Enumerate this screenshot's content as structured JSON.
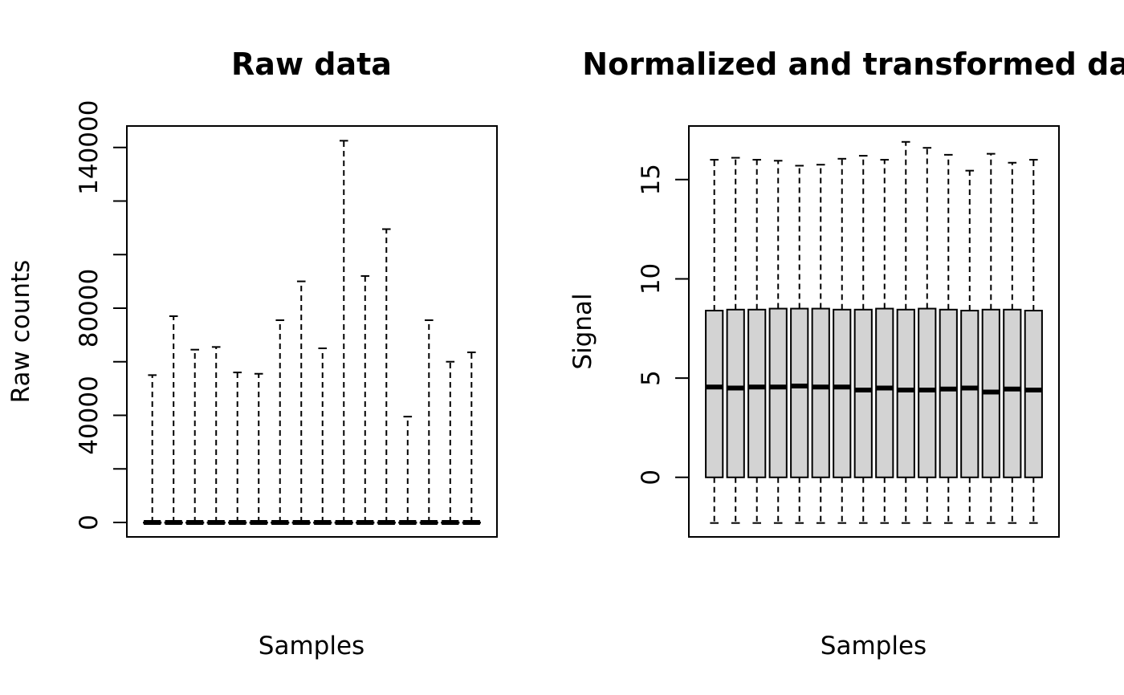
{
  "chart_data": [
    {
      "type": "boxplot",
      "title": "Raw data",
      "xlabel": "Samples",
      "ylabel": "Raw counts",
      "ylim": [
        -5400,
        148000
      ],
      "yticks": [
        0,
        20000,
        40000,
        60000,
        80000,
        100000,
        120000,
        140000
      ],
      "ytick_labels": [
        "0",
        "",
        "40000",
        "",
        "80000",
        "",
        "",
        "140000"
      ],
      "series": [
        {
          "min": 0,
          "q1": 0,
          "median": 0,
          "q3": 0,
          "max": 55000
        },
        {
          "min": 0,
          "q1": 0,
          "median": 0,
          "q3": 0,
          "max": 77000
        },
        {
          "min": 0,
          "q1": 0,
          "median": 0,
          "q3": 0,
          "max": 64500
        },
        {
          "min": 0,
          "q1": 0,
          "median": 0,
          "q3": 0,
          "max": 65500
        },
        {
          "min": 0,
          "q1": 0,
          "median": 0,
          "q3": 0,
          "max": 56000
        },
        {
          "min": 0,
          "q1": 0,
          "median": 0,
          "q3": 0,
          "max": 55500
        },
        {
          "min": 0,
          "q1": 0,
          "median": 0,
          "q3": 0,
          "max": 75500
        },
        {
          "min": 0,
          "q1": 0,
          "median": 0,
          "q3": 0,
          "max": 90000
        },
        {
          "min": 0,
          "q1": 0,
          "median": 0,
          "q3": 0,
          "max": 65000
        },
        {
          "min": 0,
          "q1": 0,
          "median": 0,
          "q3": 0,
          "max": 142500
        },
        {
          "min": 0,
          "q1": 0,
          "median": 0,
          "q3": 0,
          "max": 92000
        },
        {
          "min": 0,
          "q1": 0,
          "median": 0,
          "q3": 0,
          "max": 109500
        },
        {
          "min": 0,
          "q1": 0,
          "median": 0,
          "q3": 0,
          "max": 39500
        },
        {
          "min": 0,
          "q1": 0,
          "median": 0,
          "q3": 0,
          "max": 75500
        },
        {
          "min": 0,
          "q1": 0,
          "median": 0,
          "q3": 0,
          "max": 60000
        },
        {
          "min": 0,
          "q1": 0,
          "median": 0,
          "q3": 0,
          "max": 63500
        }
      ],
      "box_fill": "#d3d3d3",
      "grid": false
    },
    {
      "type": "boxplot",
      "title": "Normalized and transformed data",
      "xlabel": "Samples",
      "ylabel": "Signal",
      "ylim": [
        -3,
        17.7
      ],
      "yticks": [
        0,
        5,
        10,
        15
      ],
      "ytick_labels": [
        "0",
        "5",
        "10",
        "15"
      ],
      "series": [
        {
          "min": -2.3,
          "q1": 0,
          "median": 4.55,
          "q3": 8.4,
          "max": 16.0
        },
        {
          "min": -2.3,
          "q1": 0,
          "median": 4.5,
          "q3": 8.45,
          "max": 16.1
        },
        {
          "min": -2.3,
          "q1": 0,
          "median": 4.55,
          "q3": 8.45,
          "max": 16.0
        },
        {
          "min": -2.3,
          "q1": 0,
          "median": 4.55,
          "q3": 8.5,
          "max": 15.95
        },
        {
          "min": -2.3,
          "q1": 0,
          "median": 4.6,
          "q3": 8.5,
          "max": 15.7
        },
        {
          "min": -2.3,
          "q1": 0,
          "median": 4.55,
          "q3": 8.5,
          "max": 15.75
        },
        {
          "min": -2.3,
          "q1": 0,
          "median": 4.55,
          "q3": 8.45,
          "max": 16.05
        },
        {
          "min": -2.3,
          "q1": 0,
          "median": 4.4,
          "q3": 8.45,
          "max": 16.2
        },
        {
          "min": -2.3,
          "q1": 0,
          "median": 4.5,
          "q3": 8.5,
          "max": 16.0
        },
        {
          "min": -2.3,
          "q1": 0,
          "median": 4.4,
          "q3": 8.45,
          "max": 16.9
        },
        {
          "min": -2.3,
          "q1": 0,
          "median": 4.4,
          "q3": 8.5,
          "max": 16.6
        },
        {
          "min": -2.3,
          "q1": 0,
          "median": 4.45,
          "q3": 8.45,
          "max": 16.25
        },
        {
          "min": -2.3,
          "q1": 0,
          "median": 4.5,
          "q3": 8.4,
          "max": 15.45
        },
        {
          "min": -2.3,
          "q1": 0,
          "median": 4.3,
          "q3": 8.45,
          "max": 16.3
        },
        {
          "min": -2.3,
          "q1": 0,
          "median": 4.45,
          "q3": 8.45,
          "max": 15.85
        },
        {
          "min": -2.3,
          "q1": 0,
          "median": 4.4,
          "q3": 8.4,
          "max": 16.0
        }
      ],
      "box_fill": "#d3d3d3",
      "grid": false
    }
  ]
}
